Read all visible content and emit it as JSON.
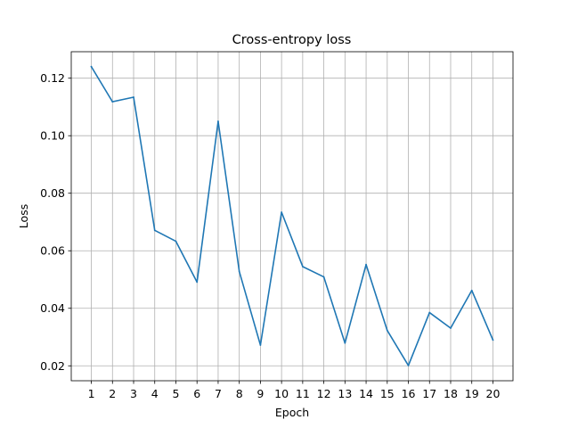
{
  "chart_data": {
    "type": "line",
    "title": "Cross-entropy loss",
    "xlabel": "Epoch",
    "ylabel": "Loss",
    "x": [
      1,
      2,
      3,
      4,
      5,
      6,
      7,
      8,
      9,
      10,
      11,
      12,
      13,
      14,
      15,
      16,
      17,
      18,
      19,
      20
    ],
    "series": [
      {
        "values": [
          0.124,
          0.1118,
          0.1134,
          0.0671,
          0.0633,
          0.0491,
          0.105,
          0.0528,
          0.0272,
          0.0734,
          0.0545,
          0.0509,
          0.0279,
          0.0552,
          0.0323,
          0.0201,
          0.0385,
          0.0331,
          0.0462,
          0.029
        ],
        "color": "#1f77b4"
      }
    ],
    "xticks": [
      "1",
      "2",
      "3",
      "4",
      "5",
      "6",
      "7",
      "8",
      "9",
      "10",
      "11",
      "12",
      "13",
      "14",
      "15",
      "16",
      "17",
      "18",
      "19",
      "20"
    ],
    "yticks": [
      "0.02",
      "0.04",
      "0.06",
      "0.08",
      "0.10",
      "0.12"
    ],
    "xlim": [
      0.05,
      20.95
    ],
    "ylim": [
      0.01481,
      0.1292
    ],
    "grid": true
  }
}
